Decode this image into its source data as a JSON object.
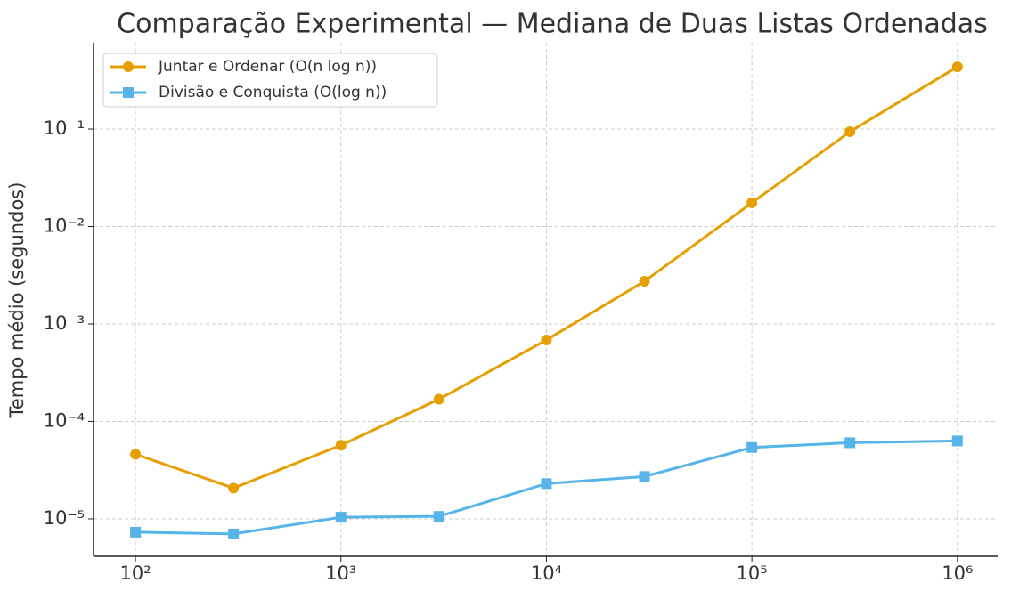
{
  "chart_data": {
    "type": "line",
    "title": "Comparação Experimental — Mediana de Duas Listas Ordenadas",
    "y_label": "Tempo médio (segundos)",
    "x": [
      100,
      300,
      1000,
      3000,
      10000,
      30000,
      100000,
      300000,
      1000000
    ],
    "series": [
      {
        "name": "Juntar e Ordenar (O(n log n))",
        "color": "#e69f00",
        "marker": "circle",
        "values": [
          4.6e-05,
          2.07e-05,
          5.7e-05,
          0.000169,
          0.000685,
          0.00274,
          0.0175,
          0.094,
          0.435
        ]
      },
      {
        "name": "Divisão e Conquista (O(log n))",
        "color": "#56b4e9",
        "marker": "square",
        "values": [
          7.3e-06,
          7e-06,
          1.04e-05,
          1.06e-05,
          2.3e-05,
          2.72e-05,
          5.4e-05,
          6.04e-05,
          6.3e-05
        ]
      }
    ],
    "xscale": "log",
    "yscale": "log",
    "xlim": [
      62.5,
      1570000
    ],
    "ylim": [
      4.13e-06,
      0.769
    ],
    "xticks": [
      {
        "value": 100,
        "label": "10²"
      },
      {
        "value": 1000,
        "label": "10³"
      },
      {
        "value": 10000,
        "label": "10⁴"
      },
      {
        "value": 100000,
        "label": "10⁵"
      },
      {
        "value": 1000000,
        "label": "10⁶"
      }
    ],
    "yticks": [
      {
        "value": 1e-05,
        "label": "10⁻⁵"
      },
      {
        "value": 0.0001,
        "label": "10⁻⁴"
      },
      {
        "value": 0.001,
        "label": "10⁻³"
      },
      {
        "value": 0.01,
        "label": "10⁻²"
      },
      {
        "value": 0.1,
        "label": "10⁻¹"
      }
    ],
    "grid": true,
    "legend": "upper left"
  }
}
